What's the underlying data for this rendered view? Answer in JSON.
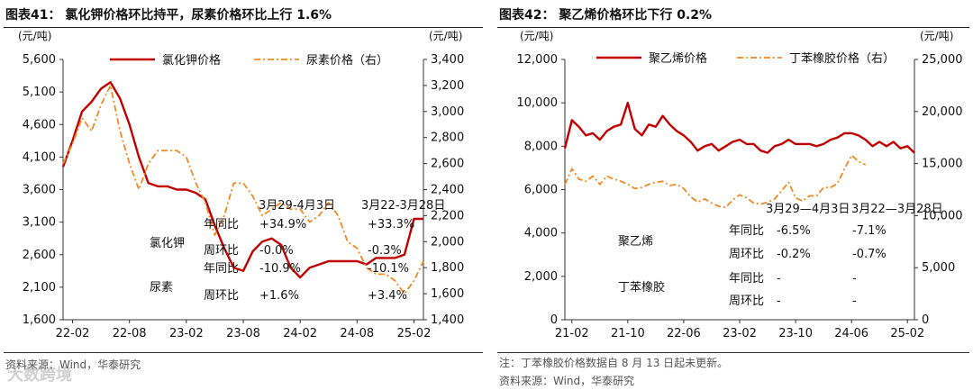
{
  "figures": [
    {
      "id": "p1",
      "title": "图表41： 氯化钾价格环比持平，尿素价格环比上行 1.6%",
      "left_unit": "(元/吨)",
      "right_unit": "(元/吨)",
      "source": "资料来源：Wind，华泰研究",
      "table": {
        "col_headers": [
          "3月29-4月3日",
          "3月22-3月28日"
        ],
        "groups": [
          {
            "name": "氯化钾",
            "rows": [
              [
                "年同比",
                "+34.9%",
                "+33.3%"
              ],
              [
                "周环比",
                "-0.0%",
                "-0.3%"
              ]
            ]
          },
          {
            "name": "尿素",
            "rows": [
              [
                "年同比",
                "-10.9%",
                "-10.1%"
              ],
              [
                "周环比",
                "+1.6%",
                "+3.4%"
              ]
            ]
          }
        ]
      }
    },
    {
      "id": "p2",
      "title": "图表42： 聚乙烯价格环比下行 0.2%",
      "left_unit": "(元/吨)",
      "right_unit": "(元/吨)",
      "note": "注：丁苯橡胶价格数据自 8 月 13 日起未更新。",
      "source": "资料来源：Wind，华泰研究",
      "table": {
        "col_headers": [
          "3月29—4月3日",
          "3月22—3月28日"
        ],
        "groups": [
          {
            "name": "聚乙烯",
            "rows": [
              [
                "年同比",
                "-6.5%",
                "-7.1%"
              ],
              [
                "周环比",
                "-0.2%",
                "-0.7%"
              ]
            ]
          },
          {
            "name": "丁苯橡胶",
            "rows": [
              [
                "年同比",
                "-",
                "-"
              ],
              [
                "周环比",
                "-",
                "-"
              ]
            ]
          }
        ]
      }
    }
  ],
  "watermark": "大数跨境",
  "colors": {
    "solid": "#C00000",
    "dashed": "#F08A24",
    "axis": "#333333",
    "text": "#111111"
  },
  "chart_data": [
    {
      "type": "line",
      "x_ticks": [
        "22-02",
        "22-08",
        "23-02",
        "23-08",
        "24-02",
        "24-08",
        "25-02"
      ],
      "xlim": [
        "2022-01",
        "2025-03"
      ],
      "y_left": {
        "ticks": [
          "1,600",
          "2,100",
          "2,600",
          "3,100",
          "3,600",
          "4,100",
          "4,600",
          "5,100",
          "5,600"
        ],
        "ylim": [
          1600,
          5600
        ]
      },
      "y_right": {
        "ticks": [
          "1,400",
          "1,600",
          "1,800",
          "2,000",
          "2,200",
          "2,400",
          "2,600",
          "2,800",
          "3,000",
          "3,200",
          "3,400"
        ],
        "ylim": [
          1400,
          3400
        ]
      },
      "series": [
        {
          "name": "氯化钾价格",
          "axis": "left",
          "style": "solid",
          "points": [
            [
              "2022-01",
              3950
            ],
            [
              "2022-02",
              4350
            ],
            [
              "2022-03",
              4800
            ],
            [
              "2022-04",
              4950
            ],
            [
              "2022-05",
              5150
            ],
            [
              "2022-06",
              5250
            ],
            [
              "2022-07",
              5000
            ],
            [
              "2022-08",
              4600
            ],
            [
              "2022-09",
              4100
            ],
            [
              "2022-10",
              3700
            ],
            [
              "2022-11",
              3650
            ],
            [
              "2022-12",
              3650
            ],
            [
              "2023-01",
              3600
            ],
            [
              "2023-02",
              3600
            ],
            [
              "2023-03",
              3550
            ],
            [
              "2023-04",
              3450
            ],
            [
              "2023-05",
              3050
            ],
            [
              "2023-06",
              2700
            ],
            [
              "2023-07",
              2400
            ],
            [
              "2023-08",
              2350
            ],
            [
              "2023-09",
              2650
            ],
            [
              "2023-10",
              2800
            ],
            [
              "2023-11",
              2850
            ],
            [
              "2023-12",
              2750
            ],
            [
              "2024-01",
              2400
            ],
            [
              "2024-02",
              2250
            ],
            [
              "2024-03",
              2400
            ],
            [
              "2024-04",
              2450
            ],
            [
              "2024-05",
              2500
            ],
            [
              "2024-06",
              2500
            ],
            [
              "2024-07",
              2500
            ],
            [
              "2024-08",
              2500
            ],
            [
              "2024-09",
              2450
            ],
            [
              "2024-10",
              2550
            ],
            [
              "2024-11",
              2550
            ],
            [
              "2024-12",
              2550
            ],
            [
              "2025-01",
              2600
            ],
            [
              "2025-02",
              3150
            ],
            [
              "2025-03",
              3150
            ]
          ]
        },
        {
          "name": "尿素价格（右）",
          "axis": "right",
          "style": "dashed",
          "points": [
            [
              "2022-01",
              2600
            ],
            [
              "2022-02",
              2750
            ],
            [
              "2022-03",
              2950
            ],
            [
              "2022-04",
              2850
            ],
            [
              "2022-05",
              3050
            ],
            [
              "2022-06",
              3200
            ],
            [
              "2022-07",
              2850
            ],
            [
              "2022-08",
              2600
            ],
            [
              "2022-09",
              2400
            ],
            [
              "2022-10",
              2600
            ],
            [
              "2022-11",
              2700
            ],
            [
              "2022-12",
              2700
            ],
            [
              "2023-01",
              2700
            ],
            [
              "2023-02",
              2650
            ],
            [
              "2023-03",
              2450
            ],
            [
              "2023-04",
              2300
            ],
            [
              "2023-05",
              2050
            ],
            [
              "2023-06",
              2200
            ],
            [
              "2023-07",
              2450
            ],
            [
              "2023-08",
              2450
            ],
            [
              "2023-09",
              2350
            ],
            [
              "2023-10",
              2200
            ],
            [
              "2023-11",
              2250
            ],
            [
              "2023-12",
              2300
            ],
            [
              "2024-01",
              2250
            ],
            [
              "2024-02",
              2250
            ],
            [
              "2024-03",
              2150
            ],
            [
              "2024-04",
              2200
            ],
            [
              "2024-05",
              2300
            ],
            [
              "2024-06",
              2200
            ],
            [
              "2024-07",
              2000
            ],
            [
              "2024-08",
              1950
            ],
            [
              "2024-09",
              1800
            ],
            [
              "2024-10",
              1750
            ],
            [
              "2024-11",
              1750
            ],
            [
              "2024-12",
              1700
            ],
            [
              "2025-01",
              1600
            ],
            [
              "2025-02",
              1700
            ],
            [
              "2025-03",
              1850
            ]
          ]
        }
      ]
    },
    {
      "type": "line",
      "x_ticks": [
        "21-02",
        "21-10",
        "22-06",
        "23-02",
        "23-10",
        "24-06",
        "25-02"
      ],
      "xlim": [
        "2021-01",
        "2025-03"
      ],
      "y_left": {
        "ticks": [
          "0",
          "2,000",
          "4,000",
          "6,000",
          "8,000",
          "10,000",
          "12,000"
        ],
        "ylim": [
          0,
          12000
        ]
      },
      "y_right": {
        "ticks": [
          "0",
          "5,000",
          "10,000",
          "15,000",
          "20,000",
          "25,000"
        ],
        "ylim": [
          0,
          25000
        ]
      },
      "series": [
        {
          "name": "聚乙烯价格",
          "axis": "left",
          "style": "solid",
          "points": [
            [
              "2021-01",
              7900
            ],
            [
              "2021-02",
              9200
            ],
            [
              "2021-03",
              8900
            ],
            [
              "2021-04",
              8500
            ],
            [
              "2021-05",
              8600
            ],
            [
              "2021-06",
              8300
            ],
            [
              "2021-07",
              8700
            ],
            [
              "2021-08",
              8900
            ],
            [
              "2021-09",
              9000
            ],
            [
              "2021-10",
              10000
            ],
            [
              "2021-11",
              8800
            ],
            [
              "2021-12",
              8500
            ],
            [
              "2022-01",
              9000
            ],
            [
              "2022-02",
              8900
            ],
            [
              "2022-03",
              9400
            ],
            [
              "2022-04",
              9000
            ],
            [
              "2022-05",
              8700
            ],
            [
              "2022-06",
              8500
            ],
            [
              "2022-07",
              8200
            ],
            [
              "2022-08",
              7800
            ],
            [
              "2022-09",
              8000
            ],
            [
              "2022-10",
              8100
            ],
            [
              "2022-11",
              7800
            ],
            [
              "2022-12",
              8000
            ],
            [
              "2023-01",
              8200
            ],
            [
              "2023-02",
              8300
            ],
            [
              "2023-03",
              8100
            ],
            [
              "2023-04",
              8100
            ],
            [
              "2023-05",
              7800
            ],
            [
              "2023-06",
              7700
            ],
            [
              "2023-07",
              8000
            ],
            [
              "2023-08",
              8100
            ],
            [
              "2023-09",
              8300
            ],
            [
              "2023-10",
              8100
            ],
            [
              "2023-11",
              8100
            ],
            [
              "2023-12",
              8100
            ],
            [
              "2024-01",
              8000
            ],
            [
              "2024-02",
              8100
            ],
            [
              "2024-03",
              8300
            ],
            [
              "2024-04",
              8400
            ],
            [
              "2024-05",
              8600
            ],
            [
              "2024-06",
              8600
            ],
            [
              "2024-07",
              8500
            ],
            [
              "2024-08",
              8300
            ],
            [
              "2024-09",
              8000
            ],
            [
              "2024-10",
              8200
            ],
            [
              "2024-11",
              8000
            ],
            [
              "2024-12",
              8200
            ],
            [
              "2025-01",
              7900
            ],
            [
              "2025-02",
              8000
            ],
            [
              "2025-03",
              7700
            ]
          ]
        },
        {
          "name": "丁苯橡胶价格（右）",
          "axis": "right",
          "style": "dashed",
          "points": [
            [
              "2021-01",
              13000
            ],
            [
              "2021-02",
              14500
            ],
            [
              "2021-03",
              13500
            ],
            [
              "2021-04",
              13300
            ],
            [
              "2021-05",
              13800
            ],
            [
              "2021-06",
              13000
            ],
            [
              "2021-07",
              13800
            ],
            [
              "2021-08",
              13500
            ],
            [
              "2021-09",
              13300
            ],
            [
              "2021-10",
              13000
            ],
            [
              "2021-11",
              12600
            ],
            [
              "2021-12",
              12700
            ],
            [
              "2022-01",
              13000
            ],
            [
              "2022-02",
              13200
            ],
            [
              "2022-03",
              13300
            ],
            [
              "2022-04",
              12900
            ],
            [
              "2022-05",
              13000
            ],
            [
              "2022-06",
              12600
            ],
            [
              "2022-07",
              11800
            ],
            [
              "2022-08",
              11300
            ],
            [
              "2022-09",
              11600
            ],
            [
              "2022-10",
              11200
            ],
            [
              "2022-11",
              10900
            ],
            [
              "2022-12",
              10800
            ],
            [
              "2023-01",
              11500
            ],
            [
              "2023-02",
              12000
            ],
            [
              "2023-03",
              11700
            ],
            [
              "2023-04",
              11200
            ],
            [
              "2023-05",
              11100
            ],
            [
              "2023-06",
              11300
            ],
            [
              "2023-07",
              11600
            ],
            [
              "2023-08",
              12400
            ],
            [
              "2023-09",
              13200
            ],
            [
              "2023-10",
              11700
            ],
            [
              "2023-11",
              11400
            ],
            [
              "2023-12",
              11900
            ],
            [
              "2024-01",
              11900
            ],
            [
              "2024-02",
              12700
            ],
            [
              "2024-03",
              12700
            ],
            [
              "2024-04",
              13100
            ],
            [
              "2024-05",
              14500
            ],
            [
              "2024-06",
              15800
            ],
            [
              "2024-07",
              15200
            ],
            [
              "2024-08",
              14900
            ]
          ]
        }
      ]
    }
  ]
}
